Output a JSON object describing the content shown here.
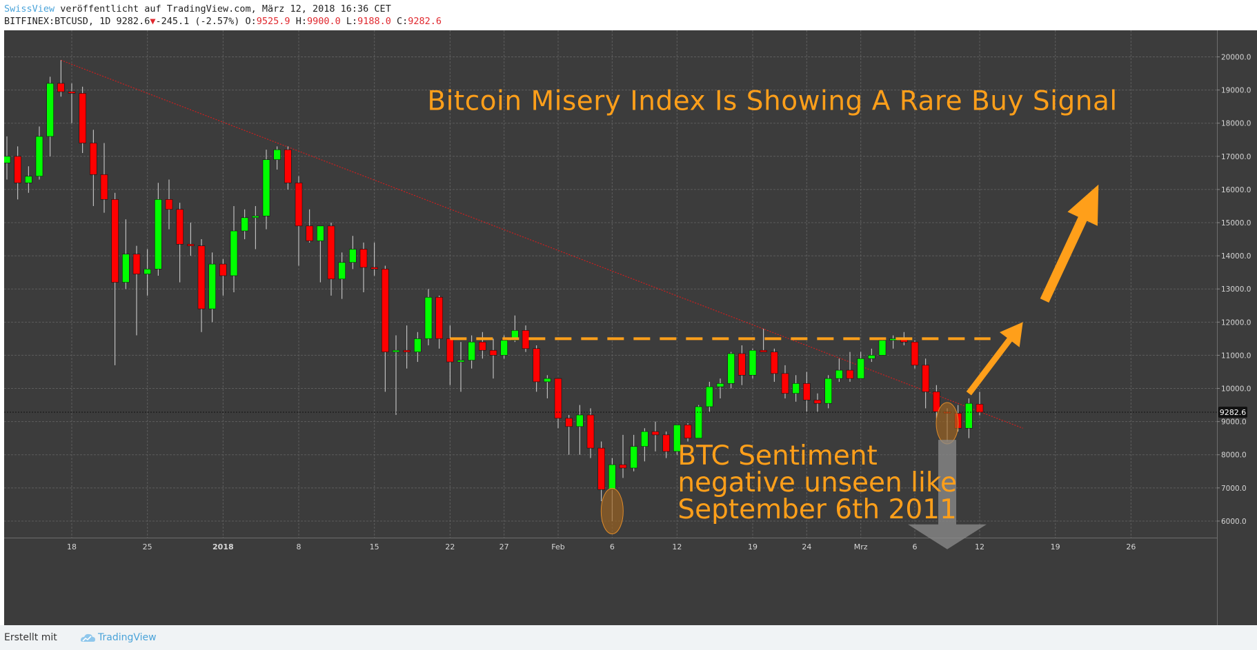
{
  "header": {
    "publisher": "SwissView",
    "published_text": " veröffentlicht auf TradingView.com, März 12, 2018 16:36 CET",
    "symbol": "BITFINEX:BTCUSD, 1D 9282.6",
    "change_arrow": "▼",
    "change_text": "-245.1 (-2.57%)",
    "o_label": " O:",
    "o_value": "9525.9",
    "h_label": " H:",
    "h_value": "9900.0",
    "l_label": " L:",
    "l_value": "9188.0",
    "c_label": " C:",
    "c_value": "9282.6"
  },
  "footer": {
    "created_with": "Erstellt mit",
    "brand": "TradingView"
  },
  "colors": {
    "background": "#3c3c3c",
    "grid": "#5d5d5d",
    "up": "#00ff00",
    "down": "#ff0000",
    "annotation": "#ff9f1a",
    "trendline": "#d21e1e"
  },
  "chart_data": {
    "type": "candlestick",
    "title": "Bitcoin Misery Index Is Showing A Rare Buy Signal",
    "annotations": {
      "sentiment": [
        "BTC Sentiment",
        "negative unseen like",
        "September 6th 2011"
      ]
    },
    "resistance_level": 11500,
    "trendline": {
      "from": [
        "2017-12-17",
        19900
      ],
      "to": [
        "2018-03-16",
        8800
      ]
    },
    "last_price": 9282.6,
    "last_price_label": "9282.6",
    "ylim": [
      5500,
      20800
    ],
    "y_ticks": [
      6000,
      7000,
      8000,
      9000,
      10000,
      11000,
      12000,
      13000,
      14000,
      15000,
      16000,
      17000,
      18000,
      19000,
      20000
    ],
    "y_tick_labels": [
      "6000.0",
      "7000.0",
      "8000.0",
      "9000.0",
      "10000.0",
      "11000.0",
      "12000.0",
      "13000.0",
      "14000.0",
      "15000.0",
      "16000.0",
      "17000.0",
      "18000.0",
      "19000.0",
      "20000.0"
    ],
    "x_ticks": [
      {
        "date": "2017-12-18",
        "label": "18",
        "bold": false
      },
      {
        "date": "2017-12-25",
        "label": "25",
        "bold": false
      },
      {
        "date": "2018-01-01",
        "label": "2018",
        "bold": true
      },
      {
        "date": "2018-01-08",
        "label": "8",
        "bold": false
      },
      {
        "date": "2018-01-15",
        "label": "15",
        "bold": false
      },
      {
        "date": "2018-01-22",
        "label": "22",
        "bold": false
      },
      {
        "date": "2018-01-27",
        "label": "27",
        "bold": false
      },
      {
        "date": "2018-02-01",
        "label": "Feb",
        "bold": false
      },
      {
        "date": "2018-02-06",
        "label": "6",
        "bold": false
      },
      {
        "date": "2018-02-12",
        "label": "12",
        "bold": false
      },
      {
        "date": "2018-02-19",
        "label": "19",
        "bold": false
      },
      {
        "date": "2018-02-24",
        "label": "24",
        "bold": false
      },
      {
        "date": "2018-03-01",
        "label": "Mrz",
        "bold": false
      },
      {
        "date": "2018-03-06",
        "label": "6",
        "bold": false
      },
      {
        "date": "2018-03-12",
        "label": "12",
        "bold": false
      },
      {
        "date": "2018-03-19",
        "label": "19",
        "bold": false
      },
      {
        "date": "2018-03-26",
        "label": "26",
        "bold": false
      }
    ],
    "x_range": [
      "2017-12-12",
      "2018-03-30"
    ],
    "candles": [
      {
        "date": "2017-12-12",
        "o": 16800,
        "h": 17600,
        "l": 16300,
        "c": 17000
      },
      {
        "date": "2017-12-13",
        "o": 17000,
        "h": 17300,
        "l": 15700,
        "c": 16200
      },
      {
        "date": "2017-12-14",
        "o": 16200,
        "h": 16700,
        "l": 15900,
        "c": 16400
      },
      {
        "date": "2017-12-15",
        "o": 16400,
        "h": 17900,
        "l": 16300,
        "c": 17600
      },
      {
        "date": "2017-12-16",
        "o": 17600,
        "h": 19400,
        "l": 17000,
        "c": 19200
      },
      {
        "date": "2017-12-17",
        "o": 19200,
        "h": 19900,
        "l": 18800,
        "c": 18950
      },
      {
        "date": "2017-12-18",
        "o": 18950,
        "h": 19200,
        "l": 18000,
        "c": 18900
      },
      {
        "date": "2017-12-19",
        "o": 18900,
        "h": 19100,
        "l": 17100,
        "c": 17400
      },
      {
        "date": "2017-12-20",
        "o": 17400,
        "h": 17800,
        "l": 15500,
        "c": 16450
      },
      {
        "date": "2017-12-21",
        "o": 16450,
        "h": 17400,
        "l": 15300,
        "c": 15700
      },
      {
        "date": "2017-12-22",
        "o": 15700,
        "h": 15900,
        "l": 10700,
        "c": 13200
      },
      {
        "date": "2017-12-23",
        "o": 13200,
        "h": 15100,
        "l": 13000,
        "c": 14050
      },
      {
        "date": "2017-12-24",
        "o": 14050,
        "h": 14300,
        "l": 11600,
        "c": 13450
      },
      {
        "date": "2017-12-25",
        "o": 13450,
        "h": 14200,
        "l": 12800,
        "c": 13600
      },
      {
        "date": "2017-12-26",
        "o": 13600,
        "h": 16200,
        "l": 13400,
        "c": 15700
      },
      {
        "date": "2017-12-27",
        "o": 15700,
        "h": 16300,
        "l": 14800,
        "c": 15400
      },
      {
        "date": "2017-12-28",
        "o": 15400,
        "h": 15600,
        "l": 13200,
        "c": 14350
      },
      {
        "date": "2017-12-29",
        "o": 14350,
        "h": 15000,
        "l": 14000,
        "c": 14300
      },
      {
        "date": "2017-12-30",
        "o": 14300,
        "h": 14500,
        "l": 11700,
        "c": 12400
      },
      {
        "date": "2017-12-31",
        "o": 12400,
        "h": 14100,
        "l": 12000,
        "c": 13750
      },
      {
        "date": "2018-01-01",
        "o": 13750,
        "h": 13900,
        "l": 12800,
        "c": 13400
      },
      {
        "date": "2018-01-02",
        "o": 13400,
        "h": 15500,
        "l": 12900,
        "c": 14750
      },
      {
        "date": "2018-01-03",
        "o": 14750,
        "h": 15400,
        "l": 14500,
        "c": 15150
      },
      {
        "date": "2018-01-04",
        "o": 15150,
        "h": 15500,
        "l": 14200,
        "c": 15200
      },
      {
        "date": "2018-01-05",
        "o": 15200,
        "h": 17200,
        "l": 14800,
        "c": 16900
      },
      {
        "date": "2018-01-06",
        "o": 16900,
        "h": 17300,
        "l": 16600,
        "c": 17200
      },
      {
        "date": "2018-01-07",
        "o": 17200,
        "h": 17300,
        "l": 16000,
        "c": 16200
      },
      {
        "date": "2018-01-08",
        "o": 16200,
        "h": 16400,
        "l": 13700,
        "c": 14900
      },
      {
        "date": "2018-01-09",
        "o": 14900,
        "h": 15400,
        "l": 14400,
        "c": 14450
      },
      {
        "date": "2018-01-10",
        "o": 14450,
        "h": 14900,
        "l": 13200,
        "c": 14900
      },
      {
        "date": "2018-01-11",
        "o": 14900,
        "h": 15000,
        "l": 12800,
        "c": 13300
      },
      {
        "date": "2018-01-12",
        "o": 13300,
        "h": 14100,
        "l": 12700,
        "c": 13800
      },
      {
        "date": "2018-01-13",
        "o": 13800,
        "h": 14600,
        "l": 13600,
        "c": 14200
      },
      {
        "date": "2018-01-14",
        "o": 14200,
        "h": 14400,
        "l": 12900,
        "c": 13650
      },
      {
        "date": "2018-01-15",
        "o": 13650,
        "h": 14400,
        "l": 13400,
        "c": 13600
      },
      {
        "date": "2018-01-16",
        "o": 13600,
        "h": 13700,
        "l": 9900,
        "c": 11100
      },
      {
        "date": "2018-01-17",
        "o": 11100,
        "h": 11600,
        "l": 9200,
        "c": 11150
      },
      {
        "date": "2018-01-18",
        "o": 11150,
        "h": 11900,
        "l": 10600,
        "c": 11100
      },
      {
        "date": "2018-01-19",
        "o": 11100,
        "h": 11700,
        "l": 10800,
        "c": 11500
      },
      {
        "date": "2018-01-20",
        "o": 11500,
        "h": 13000,
        "l": 11300,
        "c": 12750
      },
      {
        "date": "2018-01-21",
        "o": 12750,
        "h": 12800,
        "l": 11200,
        "c": 11500
      },
      {
        "date": "2018-01-22",
        "o": 11500,
        "h": 11900,
        "l": 10100,
        "c": 10800
      },
      {
        "date": "2018-01-23",
        "o": 10800,
        "h": 11400,
        "l": 9900,
        "c": 10850
      },
      {
        "date": "2018-01-24",
        "o": 10850,
        "h": 11600,
        "l": 10600,
        "c": 11400
      },
      {
        "date": "2018-01-25",
        "o": 11400,
        "h": 11700,
        "l": 10900,
        "c": 11150
      },
      {
        "date": "2018-01-26",
        "o": 11150,
        "h": 11500,
        "l": 10300,
        "c": 11000
      },
      {
        "date": "2018-01-27",
        "o": 11000,
        "h": 11600,
        "l": 10900,
        "c": 11450
      },
      {
        "date": "2018-01-28",
        "o": 11450,
        "h": 12200,
        "l": 11400,
        "c": 11750
      },
      {
        "date": "2018-01-29",
        "o": 11750,
        "h": 11900,
        "l": 11100,
        "c": 11200
      },
      {
        "date": "2018-01-30",
        "o": 11200,
        "h": 11300,
        "l": 9900,
        "c": 10200
      },
      {
        "date": "2018-01-31",
        "o": 10200,
        "h": 10400,
        "l": 9700,
        "c": 10300
      },
      {
        "date": "2018-02-01",
        "o": 10300,
        "h": 10300,
        "l": 8800,
        "c": 9100
      },
      {
        "date": "2018-02-02",
        "o": 9100,
        "h": 9200,
        "l": 8000,
        "c": 8850
      },
      {
        "date": "2018-02-03",
        "o": 8850,
        "h": 9500,
        "l": 8000,
        "c": 9200
      },
      {
        "date": "2018-02-04",
        "o": 9200,
        "h": 9400,
        "l": 7900,
        "c": 8200
      },
      {
        "date": "2018-02-05",
        "o": 8200,
        "h": 8400,
        "l": 6600,
        "c": 6950
      },
      {
        "date": "2018-02-06",
        "o": 6950,
        "h": 7900,
        "l": 6000,
        "c": 7700
      },
      {
        "date": "2018-02-07",
        "o": 7700,
        "h": 8600,
        "l": 7300,
        "c": 7600
      },
      {
        "date": "2018-02-08",
        "o": 7600,
        "h": 8600,
        "l": 7500,
        "c": 8250
      },
      {
        "date": "2018-02-09",
        "o": 8250,
        "h": 8800,
        "l": 7800,
        "c": 8700
      },
      {
        "date": "2018-02-10",
        "o": 8700,
        "h": 9000,
        "l": 8100,
        "c": 8600
      },
      {
        "date": "2018-02-11",
        "o": 8600,
        "h": 8700,
        "l": 7900,
        "c": 8100
      },
      {
        "date": "2018-02-12",
        "o": 8100,
        "h": 8900,
        "l": 8000,
        "c": 8900
      },
      {
        "date": "2018-02-13",
        "o": 8900,
        "h": 8950,
        "l": 8400,
        "c": 8500
      },
      {
        "date": "2018-02-14",
        "o": 8500,
        "h": 9500,
        "l": 8500,
        "c": 9450
      },
      {
        "date": "2018-02-15",
        "o": 9450,
        "h": 10200,
        "l": 9300,
        "c": 10050
      },
      {
        "date": "2018-02-16",
        "o": 10050,
        "h": 10300,
        "l": 9700,
        "c": 10150
      },
      {
        "date": "2018-02-17",
        "o": 10150,
        "h": 11100,
        "l": 10000,
        "c": 11050
      },
      {
        "date": "2018-02-18",
        "o": 11050,
        "h": 11300,
        "l": 10100,
        "c": 10400
      },
      {
        "date": "2018-02-19",
        "o": 10400,
        "h": 11200,
        "l": 10300,
        "c": 11150
      },
      {
        "date": "2018-02-20",
        "o": 11150,
        "h": 11800,
        "l": 11100,
        "c": 11100
      },
      {
        "date": "2018-02-21",
        "o": 11100,
        "h": 11200,
        "l": 10200,
        "c": 10450
      },
      {
        "date": "2018-02-22",
        "o": 10450,
        "h": 10700,
        "l": 9700,
        "c": 9850
      },
      {
        "date": "2018-02-23",
        "o": 9850,
        "h": 10400,
        "l": 9600,
        "c": 10150
      },
      {
        "date": "2018-02-24",
        "o": 10150,
        "h": 10500,
        "l": 9300,
        "c": 9650
      },
      {
        "date": "2018-02-25",
        "o": 9650,
        "h": 9850,
        "l": 9300,
        "c": 9550
      },
      {
        "date": "2018-02-26",
        "o": 9550,
        "h": 10400,
        "l": 9400,
        "c": 10300
      },
      {
        "date": "2018-02-27",
        "o": 10300,
        "h": 10900,
        "l": 10200,
        "c": 10550
      },
      {
        "date": "2018-02-28",
        "o": 10550,
        "h": 11100,
        "l": 10200,
        "c": 10300
      },
      {
        "date": "2018-03-01",
        "o": 10300,
        "h": 11100,
        "l": 10300,
        "c": 10900
      },
      {
        "date": "2018-03-02",
        "o": 10900,
        "h": 11200,
        "l": 10800,
        "c": 11000
      },
      {
        "date": "2018-03-03",
        "o": 11000,
        "h": 11500,
        "l": 11000,
        "c": 11450
      },
      {
        "date": "2018-03-04",
        "o": 11450,
        "h": 11600,
        "l": 11200,
        "c": 11500
      },
      {
        "date": "2018-03-05",
        "o": 11500,
        "h": 11700,
        "l": 11300,
        "c": 11400
      },
      {
        "date": "2018-03-06",
        "o": 11400,
        "h": 11450,
        "l": 10600,
        "c": 10700
      },
      {
        "date": "2018-03-07",
        "o": 10700,
        "h": 10900,
        "l": 9400,
        "c": 9900
      },
      {
        "date": "2018-03-08",
        "o": 9900,
        "h": 10100,
        "l": 9100,
        "c": 9300
      },
      {
        "date": "2018-03-09",
        "o": 9300,
        "h": 9400,
        "l": 8400,
        "c": 9250
      },
      {
        "date": "2018-03-10",
        "o": 9250,
        "h": 9500,
        "l": 8700,
        "c": 8800
      },
      {
        "date": "2018-03-11",
        "o": 8800,
        "h": 9700,
        "l": 8500,
        "c": 9550
      },
      {
        "date": "2018-03-12",
        "o": 9526,
        "h": 9900,
        "l": 9188,
        "c": 9282.6
      }
    ]
  }
}
